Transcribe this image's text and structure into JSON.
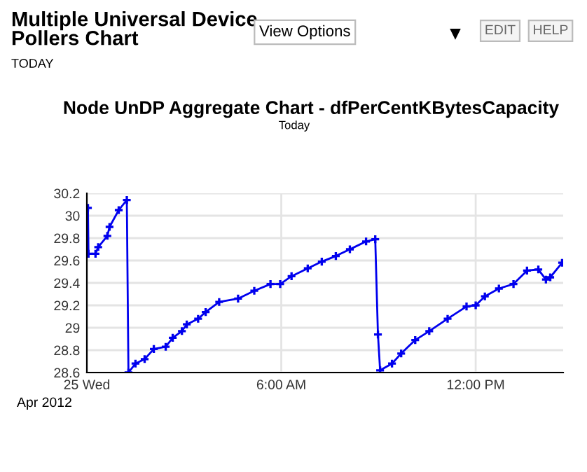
{
  "chart_data": {
    "type": "line",
    "title": "Multiple Universal Device Pollers Chart",
    "subtitle": "TODAY",
    "annotations": [
      "View Options",
      "EDIT",
      "HELP",
      "Node UnDP Aggregate Chart - dfPerCentKBytesCapacity",
      "Today",
      "Apr 2012"
    ],
    "xlim": [
      "2012-04-25T00:00",
      "2012-04-25T14:42"
    ],
    "xticks": [
      {
        "value": "2012-04-25T00:00",
        "label": "25 Wed"
      },
      {
        "value": "2012-04-25T06:00",
        "label": "6:00 AM"
      },
      {
        "value": "2012-04-25T12:00",
        "label": "12:00 PM"
      }
    ],
    "ylim": [
      28.6,
      30.2
    ],
    "yticks": [
      28.6,
      28.8,
      29,
      29.2,
      29.4,
      29.6,
      29.8,
      30,
      30.2
    ],
    "grid": true,
    "marker": "cross",
    "line_style": "solid",
    "series": [
      {
        "color": "#0000ee",
        "x": [
          "2012-04-25T00:02",
          "2012-04-25T00:03",
          "2012-04-25T00:16",
          "2012-04-25T00:21",
          "2012-04-25T00:38",
          "2012-04-25T00:42",
          "2012-04-25T00:59",
          "2012-04-25T01:14",
          "2012-04-25T01:17",
          "2012-04-25T01:30",
          "2012-04-25T01:47",
          "2012-04-25T02:04",
          "2012-04-25T02:26",
          "2012-04-25T02:39",
          "2012-04-25T02:56",
          "2012-04-25T03:05",
          "2012-04-25T03:26",
          "2012-04-25T03:40",
          "2012-04-25T04:05",
          "2012-04-25T04:40",
          "2012-04-25T05:10",
          "2012-04-25T05:40",
          "2012-04-25T05:58",
          "2012-04-25T06:19",
          "2012-04-25T06:49",
          "2012-04-25T07:15",
          "2012-04-25T07:41",
          "2012-04-25T08:07",
          "2012-04-25T08:37",
          "2012-04-25T08:54",
          "2012-04-25T08:59",
          "2012-04-25T09:03",
          "2012-04-25T09:25",
          "2012-04-25T09:42",
          "2012-04-25T10:08",
          "2012-04-25T10:34",
          "2012-04-25T11:08",
          "2012-04-25T11:43",
          "2012-04-25T12:00",
          "2012-04-25T12:17",
          "2012-04-25T12:43",
          "2012-04-25T13:10",
          "2012-04-25T13:35",
          "2012-04-25T13:56",
          "2012-04-25T14:10",
          "2012-04-25T14:18",
          "2012-04-25T14:40"
        ],
        "values": [
          30.07,
          29.66,
          29.66,
          29.72,
          29.82,
          29.9,
          30.05,
          30.14,
          28.6,
          28.68,
          28.72,
          28.81,
          28.83,
          28.91,
          28.97,
          29.03,
          29.08,
          29.14,
          29.23,
          29.26,
          29.33,
          29.39,
          29.39,
          29.46,
          29.53,
          29.59,
          29.64,
          29.7,
          29.77,
          29.79,
          28.94,
          28.62,
          28.68,
          28.77,
          28.89,
          28.97,
          29.08,
          29.19,
          29.2,
          29.28,
          29.35,
          29.39,
          29.51,
          29.52,
          29.43,
          29.45,
          29.58
        ]
      }
    ]
  }
}
